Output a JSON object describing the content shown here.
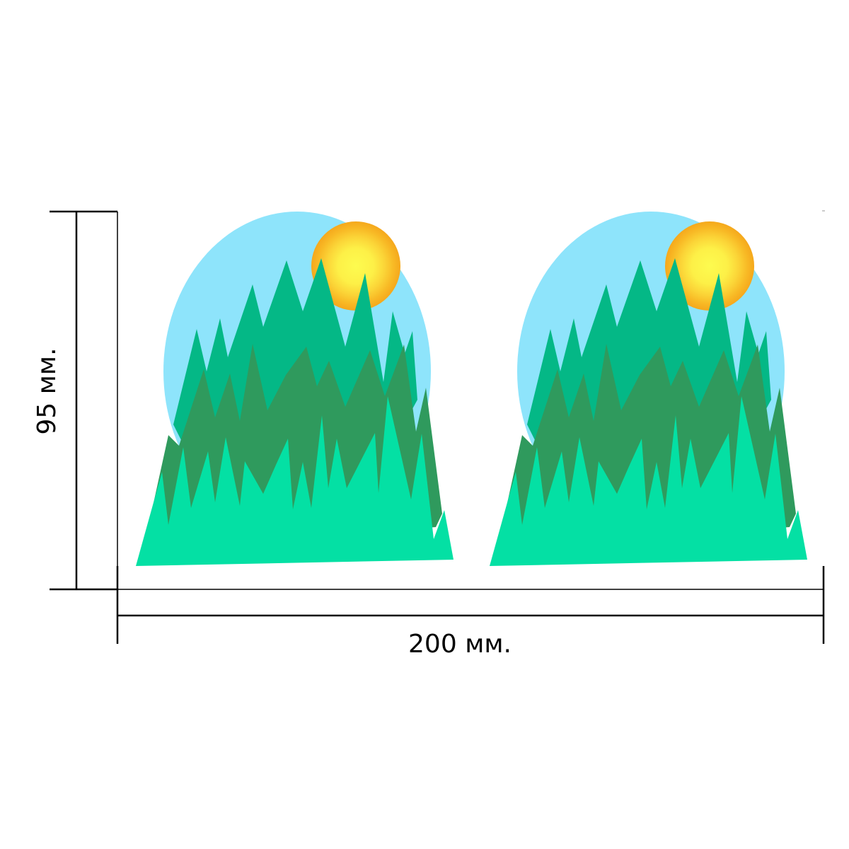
{
  "dimensions": {
    "height_label": "95 мм.",
    "width_label": "200 мм."
  },
  "stickers": [
    {
      "name": "sticker-left"
    },
    {
      "name": "sticker-right"
    }
  ],
  "colors": {
    "sky": "#8ee4fb",
    "sun_outer": "#f5a81c",
    "sun_inner": "#fdfb4f",
    "tree_back": "#04b886",
    "tree_mid": "#2f9a5d",
    "tree_front": "#04e0a4",
    "line": "#000000"
  }
}
